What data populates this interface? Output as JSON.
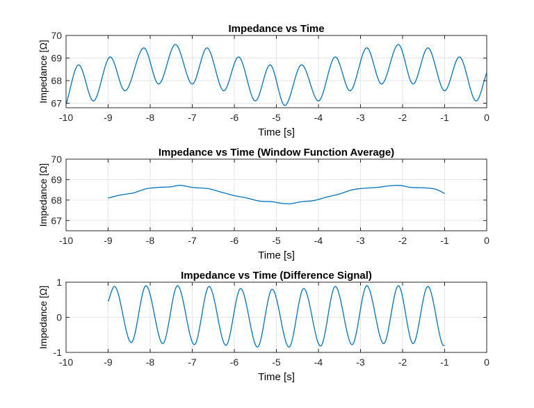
{
  "chart_data": [
    {
      "type": "line",
      "title": "Impedance vs Time",
      "xlabel": "Time [s]",
      "ylabel": "Impedance [Ω]",
      "xlim": [
        -10,
        0
      ],
      "ylim": [
        66.8,
        70
      ],
      "xticks": [
        -10,
        -9,
        -8,
        -7,
        -6,
        -5,
        -4,
        -3,
        -2,
        -1,
        0
      ],
      "yticks": [
        67,
        68,
        69,
        70
      ],
      "grid": true,
      "series": [
        {
          "color": "#0072BD",
          "sampled": [
            {
              "x": -10.0,
              "y": 66.95
            },
            {
              "x": -9.7,
              "y": 68.7
            },
            {
              "x": -9.35,
              "y": 67.1
            },
            {
              "x": -8.95,
              "y": 69.05
            },
            {
              "x": -8.6,
              "y": 67.55
            },
            {
              "x": -8.15,
              "y": 69.45
            },
            {
              "x": -7.8,
              "y": 67.85
            },
            {
              "x": -7.4,
              "y": 69.6
            },
            {
              "x": -7.0,
              "y": 67.85
            },
            {
              "x": -6.65,
              "y": 69.45
            },
            {
              "x": -6.25,
              "y": 67.55
            },
            {
              "x": -5.9,
              "y": 69.05
            },
            {
              "x": -5.5,
              "y": 67.1
            },
            {
              "x": -5.15,
              "y": 68.7
            },
            {
              "x": -4.8,
              "y": 66.9
            },
            {
              "x": -4.4,
              "y": 68.7
            },
            {
              "x": -4.0,
              "y": 67.1
            },
            {
              "x": -3.6,
              "y": 69.05
            },
            {
              "x": -3.25,
              "y": 67.55
            },
            {
              "x": -2.85,
              "y": 69.45
            },
            {
              "x": -2.5,
              "y": 67.85
            },
            {
              "x": -2.1,
              "y": 69.6
            },
            {
              "x": -1.75,
              "y": 67.85
            },
            {
              "x": -1.4,
              "y": 69.45
            },
            {
              "x": -1.0,
              "y": 67.55
            },
            {
              "x": -0.65,
              "y": 69.05
            },
            {
              "x": -0.25,
              "y": 67.1
            },
            {
              "x": 0.0,
              "y": 68.35
            }
          ]
        }
      ]
    },
    {
      "type": "line",
      "title": "Impedance vs Time (Window Function Average)",
      "xlabel": "Time [s]",
      "ylabel": "Impedance [Ω]",
      "xlim": [
        -10,
        0
      ],
      "ylim": [
        66.5,
        70
      ],
      "xticks": [
        -10,
        -9,
        -8,
        -7,
        -6,
        -5,
        -4,
        -3,
        -2,
        -1,
        0
      ],
      "yticks": [
        67,
        68,
        69,
        70
      ],
      "grid": true,
      "series": [
        {
          "color": "#0072BD",
          "x": [
            -9.0,
            -8.7,
            -8.4,
            -8.1,
            -7.8,
            -7.5,
            -7.3,
            -7.0,
            -6.6,
            -6.3,
            -6.0,
            -5.7,
            -5.4,
            -5.1,
            -4.9,
            -4.7,
            -4.4,
            -4.1,
            -3.8,
            -3.5,
            -3.2,
            -2.9,
            -2.6,
            -2.3,
            -2.1,
            -1.8,
            -1.5,
            -1.2,
            -1.0
          ],
          "y": [
            68.1,
            68.25,
            68.35,
            68.55,
            68.62,
            68.65,
            68.72,
            68.62,
            68.55,
            68.38,
            68.22,
            68.1,
            67.95,
            67.92,
            67.85,
            67.82,
            67.92,
            67.98,
            68.15,
            68.3,
            68.5,
            68.58,
            68.62,
            68.7,
            68.72,
            68.62,
            68.6,
            68.52,
            68.32
          ]
        }
      ]
    },
    {
      "type": "line",
      "title": "Impedance vs Time (Difference Signal)",
      "xlabel": "Time [s]",
      "ylabel": "Impedance [Ω]",
      "xlim": [
        -10,
        0
      ],
      "ylim": [
        -1,
        1
      ],
      "xticks": [
        -10,
        -9,
        -8,
        -7,
        -6,
        -5,
        -4,
        -3,
        -2,
        -1,
        0
      ],
      "yticks": [
        -1,
        0,
        1
      ],
      "grid": true,
      "series": [
        {
          "color": "#0072BD",
          "sampled": [
            {
              "x": -9.0,
              "y": 0.45
            },
            {
              "x": -8.85,
              "y": 0.88
            },
            {
              "x": -8.45,
              "y": -0.72
            },
            {
              "x": -8.1,
              "y": 0.9
            },
            {
              "x": -7.7,
              "y": -0.75
            },
            {
              "x": -7.35,
              "y": 0.9
            },
            {
              "x": -6.95,
              "y": -0.78
            },
            {
              "x": -6.6,
              "y": 0.88
            },
            {
              "x": -6.2,
              "y": -0.8
            },
            {
              "x": -5.85,
              "y": 0.82
            },
            {
              "x": -5.45,
              "y": -0.85
            },
            {
              "x": -5.1,
              "y": 0.8
            },
            {
              "x": -4.7,
              "y": -0.85
            },
            {
              "x": -4.35,
              "y": 0.82
            },
            {
              "x": -3.95,
              "y": -0.82
            },
            {
              "x": -3.6,
              "y": 0.88
            },
            {
              "x": -3.2,
              "y": -0.78
            },
            {
              "x": -2.85,
              "y": 0.9
            },
            {
              "x": -2.45,
              "y": -0.75
            },
            {
              "x": -2.1,
              "y": 0.9
            },
            {
              "x": -1.75,
              "y": -0.75
            },
            {
              "x": -1.4,
              "y": 0.88
            },
            {
              "x": -1.05,
              "y": -0.78
            },
            {
              "x": -1.0,
              "y": -0.8
            }
          ]
        }
      ]
    }
  ]
}
